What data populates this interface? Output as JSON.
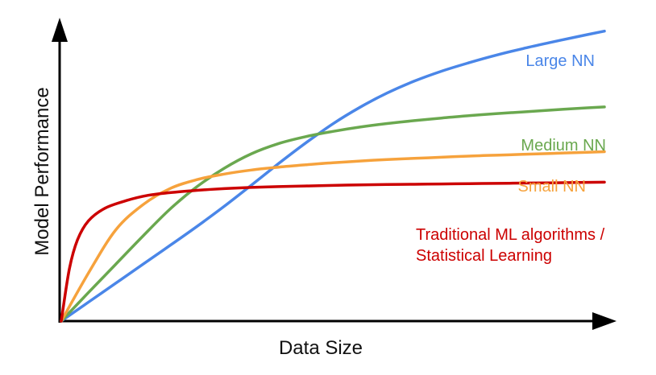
{
  "chart_data": {
    "type": "line",
    "title": "",
    "xlabel": "Data Size",
    "ylabel": "Model Performance",
    "xlim": [
      0,
      100
    ],
    "ylim": [
      0,
      100
    ],
    "grid": false,
    "legend": "inline-labels",
    "series": [
      {
        "name": "Large NN",
        "label_lines": [
          "Large NN"
        ],
        "color": "#4a86e8",
        "x": [
          0,
          5,
          10,
          15,
          20,
          25,
          30,
          35,
          40,
          45,
          50,
          55,
          60,
          65,
          70,
          75,
          80,
          85,
          90,
          95,
          100
        ],
        "y": [
          0,
          6.5,
          13,
          19.5,
          26,
          32.6,
          39.5,
          46.8,
          54.2,
          61.3,
          67.9,
          73.6,
          78.5,
          82.6,
          86.0,
          88.9,
          91.5,
          93.8,
          95.9,
          97.9,
          99.8
        ]
      },
      {
        "name": "Medium NN",
        "label_lines": [
          "Medium NN"
        ],
        "color": "#6aa84f",
        "x": [
          0,
          5,
          10,
          15,
          20,
          25,
          30,
          35,
          40,
          45,
          50,
          55,
          60,
          65,
          70,
          75,
          80,
          85,
          90,
          95,
          100
        ],
        "y": [
          0,
          9.8,
          19.5,
          29.2,
          38.5,
          46.3,
          52.6,
          57.6,
          61.1,
          63.5,
          65.3,
          66.8,
          68.0,
          69.0,
          69.9,
          70.7,
          71.4,
          72.0,
          72.6,
          73.2,
          73.7
        ]
      },
      {
        "name": "Small NN",
        "label_lines": [
          "Small NN"
        ],
        "color": "#f6a23c",
        "x": [
          0,
          5,
          10,
          15,
          20,
          25,
          30,
          35,
          40,
          45,
          50,
          55,
          60,
          65,
          70,
          75,
          80,
          85,
          90,
          95,
          100
        ],
        "y": [
          0,
          16.5,
          31.3,
          40.0,
          45.6,
          48.7,
          50.6,
          52.0,
          53.0,
          53.8,
          54.5,
          55.1,
          55.6,
          56.0,
          56.4,
          56.8,
          57.1,
          57.4,
          57.7,
          58.0,
          58.3
        ]
      },
      {
        "name": "Traditional ML algorithms / Statistical Learning",
        "label_lines": [
          "Traditional ML algorithms /",
          "Statistical Learning"
        ],
        "color": "#cc0000",
        "x": [
          0,
          1.5,
          3,
          5,
          8,
          12,
          16,
          20,
          25,
          30,
          35,
          40,
          45,
          50,
          55,
          60,
          65,
          70,
          75,
          80,
          85,
          90,
          95,
          100
        ],
        "y": [
          0,
          18,
          28,
          34.5,
          38.8,
          41.5,
          43.3,
          44.2,
          45.0,
          45.6,
          46.0,
          46.3,
          46.5,
          46.7,
          46.9,
          47.0,
          47.1,
          47.2,
          47.3,
          47.4,
          47.5,
          47.6,
          47.7,
          47.8
        ]
      }
    ]
  }
}
